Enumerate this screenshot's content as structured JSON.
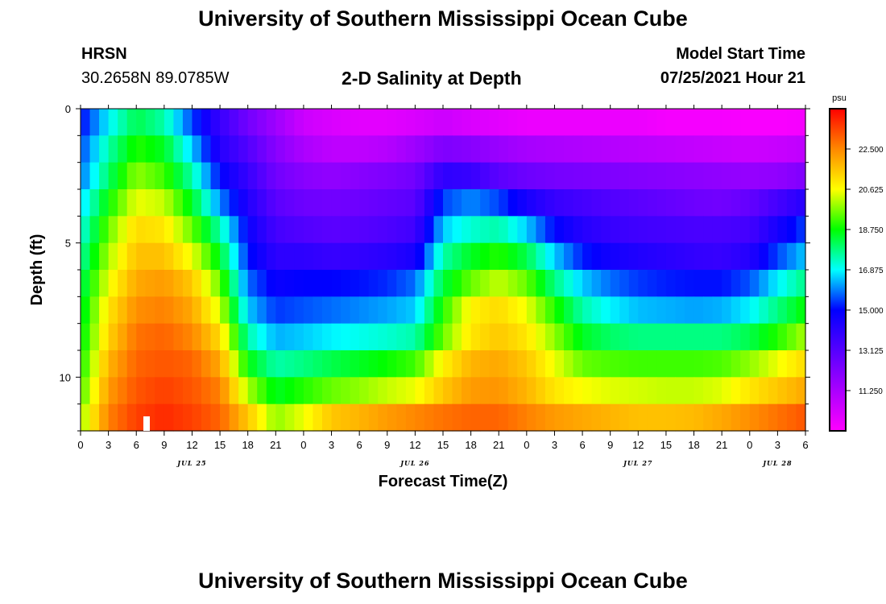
{
  "header": {
    "title": "University of Southern Mississippi Ocean Cube",
    "station": "HRSN",
    "coords": "30.2658N  89.0785W",
    "plot_title": "2-D Salinity at Depth",
    "model_start_label": "Model Start Time",
    "model_start_value": "07/25/2021 Hour 21"
  },
  "footer": {
    "title": "University of Southern Mississippi Ocean Cube"
  },
  "chart_data": {
    "type": "heatmap",
    "title": "2-D Salinity at Depth",
    "xlabel": "Forecast Time(Z)",
    "ylabel": "Depth (ft)",
    "x_tick_labels": [
      "0",
      "3",
      "6",
      "9",
      "12",
      "15",
      "18",
      "21",
      "0",
      "3",
      "6",
      "9",
      "12",
      "15",
      "18",
      "21",
      "0",
      "3",
      "6",
      "9",
      "12",
      "15",
      "18",
      "21",
      "0",
      "3",
      "6"
    ],
    "x_hours_range": [
      0,
      78
    ],
    "date_labels": [
      {
        "label": "JUL 25",
        "hour": 12
      },
      {
        "label": "JUL 26",
        "hour": 36
      },
      {
        "label": "JUL 27",
        "hour": 60
      },
      {
        "label": "JUL 28",
        "hour": 75
      }
    ],
    "ylim": [
      0,
      12
    ],
    "y_tick_values": [
      0,
      5,
      10
    ],
    "y_tick_labels": [
      "0",
      "5",
      "10"
    ],
    "depth_levels_ft": [
      0.5,
      1.5,
      2.5,
      3.5,
      4.5,
      5.5,
      6.5,
      7.5,
      8.5,
      9.5,
      10.5,
      11.5
    ],
    "colorbar": {
      "unit": "psu",
      "min": 9.375,
      "max": 24.375,
      "tick_labels": [
        "22.500",
        "20.625",
        "18.750",
        "16.875",
        "15.000",
        "13.125",
        "11.250"
      ],
      "tick_values": [
        22.5,
        20.625,
        18.75,
        16.875,
        15.0,
        13.125,
        11.25
      ]
    },
    "salinity_keyframes": {
      "hours": [
        0,
        3,
        6,
        9,
        12,
        15,
        18,
        21,
        24,
        27,
        30,
        33,
        36,
        39,
        42,
        45,
        48,
        51,
        54,
        57,
        60,
        63,
        66,
        69,
        72,
        75,
        78
      ],
      "rows": [
        [
          15.0,
          16.8,
          18.2,
          17.5,
          15.5,
          13.8,
          12.5,
          11.5,
          10.5,
          10.2,
          10.0,
          10.0,
          10.2,
          10.5,
          10.2,
          10.0,
          9.8,
          9.8,
          9.8,
          9.8,
          9.8,
          9.6,
          9.6,
          9.6,
          9.5,
          9.5,
          9.6
        ],
        [
          15.5,
          17.5,
          19.0,
          18.5,
          16.5,
          14.2,
          13.2,
          12.0,
          11.2,
          10.8,
          10.8,
          11.0,
          11.5,
          12.2,
          12.0,
          11.6,
          11.3,
          11.2,
          11.1,
          11.0,
          10.9,
          10.8,
          10.7,
          10.6,
          10.5,
          10.6,
          10.8
        ],
        [
          15.8,
          18.0,
          19.8,
          19.2,
          17.5,
          15.0,
          13.8,
          12.5,
          12.0,
          11.8,
          12.0,
          12.2,
          12.5,
          14.0,
          13.8,
          13.0,
          12.6,
          12.4,
          12.3,
          12.2,
          12.1,
          12.0,
          11.9,
          11.8,
          11.7,
          11.8,
          12.2
        ],
        [
          16.5,
          18.8,
          20.5,
          20.2,
          18.5,
          16.0,
          14.3,
          13.0,
          12.6,
          12.5,
          12.6,
          12.8,
          13.0,
          15.5,
          16.0,
          15.5,
          14.5,
          13.8,
          13.5,
          13.2,
          13.0,
          12.8,
          12.6,
          12.5,
          12.8,
          13.5,
          14.2
        ],
        [
          17.0,
          19.5,
          21.2,
          21.0,
          19.5,
          17.5,
          14.8,
          13.5,
          13.2,
          13.0,
          13.1,
          13.3,
          13.6,
          16.5,
          17.2,
          17.5,
          16.5,
          15.0,
          14.2,
          13.8,
          13.6,
          13.5,
          13.4,
          13.4,
          13.5,
          14.5,
          15.5
        ],
        [
          17.5,
          20.0,
          21.6,
          21.6,
          20.5,
          18.5,
          15.2,
          14.0,
          14.0,
          13.8,
          13.9,
          14.1,
          14.5,
          17.5,
          18.5,
          19.0,
          18.2,
          16.5,
          15.2,
          14.6,
          14.3,
          14.1,
          13.9,
          13.8,
          14.2,
          15.5,
          16.5
        ],
        [
          18.0,
          20.5,
          22.0,
          22.2,
          21.5,
          19.5,
          15.8,
          14.8,
          15.0,
          15.0,
          15.1,
          15.3,
          15.8,
          18.3,
          19.5,
          20.2,
          19.5,
          17.8,
          16.5,
          15.8,
          15.4,
          15.2,
          15.1,
          15.1,
          15.6,
          16.8,
          17.8
        ],
        [
          18.3,
          21.0,
          22.4,
          22.6,
          22.0,
          20.3,
          16.5,
          15.4,
          15.6,
          15.8,
          16.0,
          16.2,
          16.5,
          19.0,
          20.8,
          21.2,
          20.5,
          19.0,
          17.5,
          16.8,
          16.4,
          16.3,
          16.2,
          16.3,
          16.8,
          17.8,
          18.8
        ],
        [
          18.5,
          21.3,
          22.8,
          23.0,
          22.5,
          21.2,
          17.5,
          16.3,
          16.5,
          16.8,
          17.0,
          17.2,
          17.5,
          19.5,
          21.0,
          21.5,
          21.0,
          19.8,
          18.5,
          18.0,
          17.8,
          17.8,
          17.8,
          17.8,
          18.2,
          19.0,
          20.0
        ],
        [
          18.8,
          21.8,
          23.0,
          23.2,
          23.0,
          22.0,
          18.7,
          17.5,
          17.8,
          18.2,
          18.5,
          18.8,
          19.2,
          20.8,
          21.8,
          22.0,
          21.5,
          20.5,
          19.5,
          19.3,
          19.2,
          19.2,
          19.2,
          19.3,
          19.8,
          20.5,
          21.2
        ],
        [
          19.2,
          22.2,
          23.2,
          23.5,
          23.2,
          22.6,
          20.0,
          18.5,
          19.0,
          19.5,
          19.8,
          20.2,
          20.5,
          21.5,
          22.2,
          22.3,
          21.8,
          21.0,
          20.6,
          20.4,
          20.3,
          20.2,
          20.2,
          20.4,
          21.0,
          21.5,
          22.0
        ],
        [
          19.8,
          22.6,
          23.5,
          23.8,
          23.5,
          23.0,
          21.5,
          19.8,
          20.5,
          21.5,
          21.8,
          22.2,
          22.5,
          22.8,
          23.0,
          23.0,
          22.6,
          22.2,
          22.0,
          21.8,
          21.6,
          21.6,
          21.7,
          22.0,
          22.4,
          22.8,
          23.2
        ]
      ]
    }
  }
}
